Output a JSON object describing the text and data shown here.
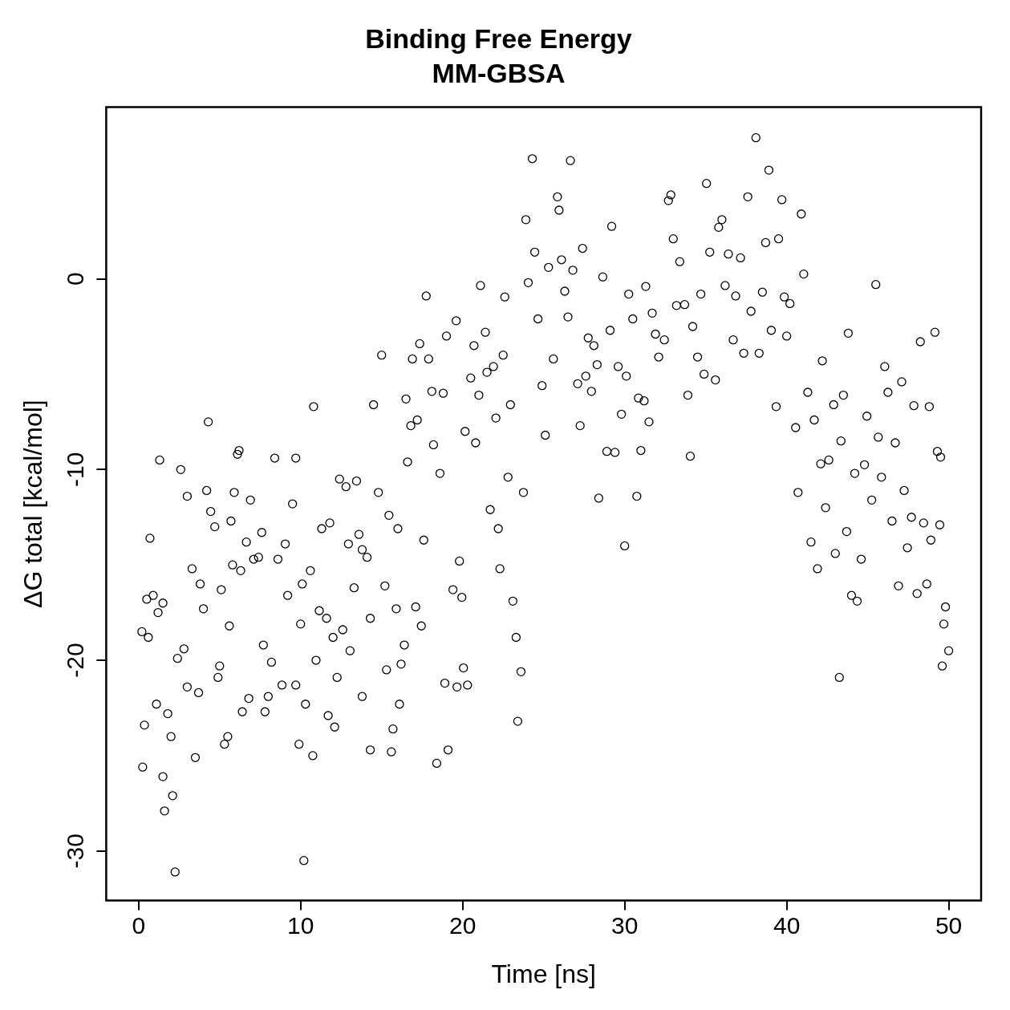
{
  "chart_data": {
    "type": "scatter",
    "title": "Binding Free Energy",
    "subtitle": "MM-GBSA",
    "xlabel": "Time [ns]",
    "ylabel": "ΔG total [kcal/mol]",
    "xlim": [
      -2,
      52
    ],
    "xticks": [
      0,
      10,
      20,
      30,
      40,
      50
    ],
    "ylim": [
      -32.6,
      9
    ],
    "yticks": [
      -30,
      -20,
      -10,
      0
    ],
    "grid": false,
    "legend": false,
    "marker": "circle",
    "series": [
      {
        "color": "#000000",
        "x": [
          0.2,
          0.25,
          0.36,
          0.5,
          0.6,
          0.7,
          0.9,
          1.1,
          1.2,
          1.3,
          1.5,
          1.5,
          1.6,
          1.8,
          2.0,
          2.1,
          2.25,
          2.4,
          2.6,
          2.8,
          3.0,
          3.0,
          3.3,
          3.5,
          3.7,
          3.8,
          4.0,
          4.3,
          4.2,
          4.45,
          4.7,
          4.9,
          5.0,
          5.1,
          5.3,
          5.5,
          5.6,
          5.7,
          5.8,
          5.9,
          6.1,
          6.2,
          6.3,
          6.4,
          6.65,
          6.8,
          6.9,
          7.1,
          7.4,
          7.6,
          7.7,
          7.8,
          8.0,
          8.2,
          8.4,
          8.6,
          8.85,
          9.05,
          9.2,
          9.5,
          9.7,
          9.7,
          9.9,
          10.0,
          10.1,
          10.2,
          10.3,
          10.6,
          10.75,
          10.8,
          10.95,
          11.15,
          11.3,
          11.6,
          11.7,
          11.8,
          12.0,
          12.1,
          12.25,
          12.4,
          12.6,
          12.8,
          12.95,
          13.05,
          13.3,
          13.45,
          13.6,
          13.8,
          13.8,
          14.1,
          14.3,
          14.3,
          14.5,
          14.8,
          15.0,
          15.2,
          15.3,
          15.45,
          15.6,
          15.7,
          15.9,
          16.0,
          16.1,
          16.2,
          16.4,
          16.5,
          16.6,
          16.8,
          16.9,
          17.1,
          17.2,
          17.35,
          17.45,
          17.6,
          17.75,
          17.9,
          18.1,
          18.2,
          18.4,
          18.6,
          18.8,
          18.9,
          19.0,
          19.1,
          19.4,
          19.6,
          19.65,
          19.8,
          19.95,
          20.05,
          20.15,
          20.3,
          20.5,
          20.7,
          20.8,
          21.0,
          21.1,
          21.4,
          21.5,
          21.7,
          21.9,
          22.05,
          22.2,
          22.3,
          22.5,
          22.6,
          22.8,
          22.95,
          23.1,
          23.3,
          23.4,
          23.6,
          23.75,
          23.9,
          24.05,
          24.3,
          24.45,
          24.65,
          24.9,
          25.1,
          25.3,
          25.6,
          25.85,
          25.95,
          26.1,
          26.3,
          26.5,
          26.65,
          26.8,
          27.1,
          27.25,
          27.4,
          27.6,
          27.75,
          27.95,
          28.1,
          28.3,
          28.4,
          28.65,
          28.9,
          29.1,
          29.2,
          29.4,
          29.6,
          29.8,
          30.0,
          30.1,
          30.25,
          30.5,
          30.75,
          30.85,
          31.0,
          31.2,
          31.3,
          31.5,
          31.7,
          31.9,
          32.1,
          32.45,
          32.7,
          32.85,
          33.0,
          33.2,
          33.4,
          33.7,
          33.9,
          34.05,
          34.2,
          34.5,
          34.7,
          34.9,
          35.05,
          35.25,
          35.6,
          35.8,
          36.0,
          36.2,
          36.4,
          36.7,
          36.85,
          37.15,
          37.35,
          37.6,
          37.8,
          38.1,
          38.3,
          38.5,
          38.7,
          38.9,
          39.05,
          39.35,
          39.5,
          39.7,
          39.85,
          40.0,
          40.2,
          40.55,
          40.7,
          40.9,
          41.05,
          41.3,
          41.5,
          41.7,
          41.9,
          42.1,
          42.2,
          42.4,
          42.6,
          42.9,
          43.0,
          43.25,
          43.35,
          43.5,
          43.7,
          43.8,
          44.0,
          44.2,
          44.35,
          44.6,
          44.8,
          44.95,
          45.25,
          45.5,
          45.65,
          45.85,
          46.05,
          46.25,
          46.5,
          46.7,
          46.9,
          47.1,
          47.25,
          47.45,
          47.7,
          47.85,
          48.05,
          48.25,
          48.45,
          48.65,
          48.8,
          48.9,
          49.15,
          49.3,
          49.45,
          49.5,
          49.6,
          49.7,
          49.8,
          50.0
        ],
        "values": [
          -18.5,
          -25.6,
          -23.4,
          -16.8,
          -18.8,
          -13.6,
          -16.6,
          -22.3,
          -17.5,
          -9.5,
          -17.0,
          -26.1,
          -27.9,
          -22.8,
          -24.0,
          -27.1,
          -31.1,
          -19.9,
          -10.0,
          -19.4,
          -21.4,
          -11.4,
          -15.2,
          -25.1,
          -21.7,
          -16.0,
          -17.3,
          -7.5,
          -11.1,
          -12.2,
          -13.0,
          -20.9,
          -20.3,
          -16.3,
          -24.4,
          -24.0,
          -18.2,
          -12.7,
          -15.0,
          -11.2,
          -9.2,
          -9.0,
          -15.3,
          -22.7,
          -13.8,
          -22.0,
          -11.6,
          -14.7,
          -14.6,
          -13.3,
          -19.2,
          -22.7,
          -21.9,
          -20.1,
          -9.4,
          -14.7,
          -21.3,
          -13.9,
          -16.6,
          -11.8,
          -9.4,
          -21.3,
          -24.4,
          -18.1,
          -16.0,
          -30.5,
          -22.3,
          -15.3,
          -25.0,
          -6.7,
          -20.0,
          -17.4,
          -13.1,
          -17.8,
          -22.9,
          -12.8,
          -18.8,
          -23.5,
          -20.9,
          -10.5,
          -18.4,
          -10.9,
          -13.9,
          -19.5,
          -16.2,
          -10.6,
          -13.4,
          -14.2,
          -21.9,
          -14.6,
          -17.8,
          -24.7,
          -6.6,
          -11.2,
          -4.0,
          -16.1,
          -20.5,
          -12.4,
          -24.8,
          -23.6,
          -17.3,
          -13.1,
          -22.3,
          -20.2,
          -19.2,
          -6.3,
          -9.6,
          -7.7,
          -4.2,
          -17.2,
          -7.4,
          -3.4,
          -18.2,
          -13.7,
          -0.9,
          -4.2,
          -5.9,
          -8.7,
          -25.4,
          -10.2,
          -6.0,
          -21.2,
          -3.0,
          -24.7,
          -16.3,
          -2.2,
          -21.4,
          -14.8,
          -16.7,
          -20.4,
          -8.0,
          -21.3,
          -5.2,
          -3.5,
          -8.6,
          -6.1,
          -0.35,
          -2.8,
          -4.9,
          -12.1,
          -4.6,
          -7.3,
          -13.1,
          -15.2,
          -4.0,
          -0.95,
          -10.4,
          -6.6,
          -16.9,
          -18.8,
          -23.2,
          -20.6,
          -11.2,
          3.1,
          -0.2,
          6.3,
          1.4,
          -2.1,
          -5.6,
          -8.2,
          0.6,
          -4.2,
          4.3,
          3.6,
          1.0,
          -0.65,
          -2.0,
          6.2,
          0.45,
          -5.5,
          -7.7,
          1.6,
          -5.1,
          -3.1,
          -5.9,
          -3.5,
          -4.5,
          -11.5,
          0.1,
          -9.05,
          -2.7,
          2.75,
          -9.1,
          -4.6,
          -7.1,
          -14.0,
          -5.1,
          -0.8,
          -2.1,
          -11.4,
          -6.25,
          -9.0,
          -6.4,
          -0.4,
          -7.5,
          -1.8,
          -2.9,
          -4.1,
          -3.2,
          4.1,
          4.4,
          2.1,
          -1.4,
          0.9,
          -1.35,
          -6.1,
          -9.3,
          -2.5,
          -4.1,
          -0.8,
          -5.0,
          5.0,
          1.4,
          -5.3,
          2.7,
          3.1,
          -0.35,
          1.3,
          -3.2,
          -0.9,
          1.1,
          -3.9,
          4.3,
          -1.7,
          7.4,
          -3.9,
          -0.7,
          1.9,
          5.7,
          -2.7,
          -6.7,
          2.1,
          4.15,
          -0.95,
          -3.0,
          -1.3,
          -7.8,
          -11.2,
          3.4,
          0.25,
          -5.95,
          -13.8,
          -7.4,
          -15.2,
          -9.7,
          -4.3,
          -12.0,
          -9.5,
          -6.6,
          -14.4,
          -20.9,
          -8.5,
          -6.1,
          -13.25,
          -2.85,
          -16.6,
          -10.2,
          -16.9,
          -14.7,
          -9.75,
          -7.2,
          -11.6,
          -0.3,
          -8.3,
          -10.4,
          -4.6,
          -5.95,
          -12.7,
          -8.6,
          -16.1,
          -5.4,
          -11.1,
          -14.1,
          -12.5,
          -6.65,
          -16.5,
          -3.3,
          -12.8,
          -16.0,
          -6.7,
          -13.7,
          -2.8,
          -9.05,
          -12.9,
          -9.35,
          -20.3,
          -18.1,
          -17.2,
          -19.5
        ]
      }
    ]
  }
}
